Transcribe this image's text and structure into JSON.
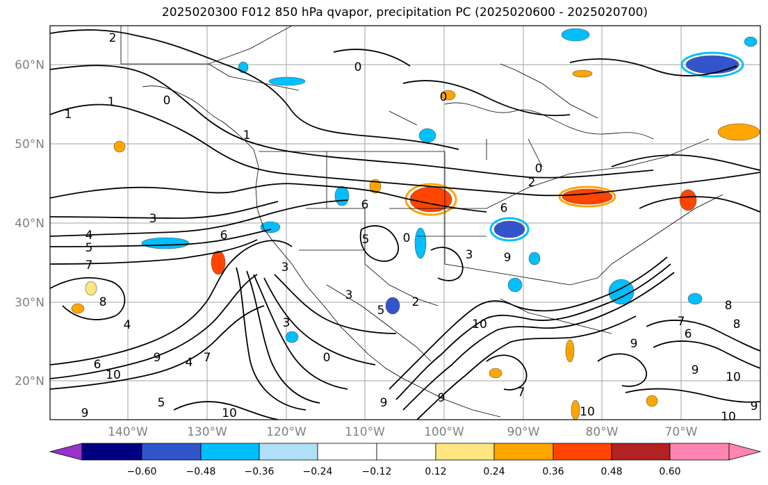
{
  "title": "2025020300 F012 850 hPa qvapor, precipitation PC (2025020600 - 2025020700)",
  "lat_labels": [
    "60°N",
    "50°N",
    "40°N",
    "30°N",
    "20°N"
  ],
  "lon_labels": [
    "140°W",
    "130°W",
    "120°W",
    "110°W",
    "100°W",
    "90°W",
    "80°W",
    "70°W"
  ],
  "contour_labels": [
    "2",
    "0",
    "1",
    "1",
    "0",
    "0",
    "0",
    "1",
    "3",
    "4",
    "5",
    "7",
    "6",
    "6",
    "5",
    "5",
    "2",
    "2",
    "0",
    "3",
    "3",
    "9",
    "8",
    "4",
    "4",
    "7",
    "9",
    "10",
    "10",
    "10",
    "9",
    "0",
    "3",
    "3",
    "5",
    "6",
    "9",
    "9",
    "10",
    "6",
    "7",
    "9",
    "10",
    "10",
    "8",
    "8",
    "7",
    "6",
    "9",
    "9"
  ],
  "colorbar": {
    "colors": [
      "#9932cc",
      "#000080",
      "#3355cc",
      "#00bfff",
      "#b0e0f8",
      "#ffffff",
      "#ffe680",
      "#ffa500",
      "#ff4500",
      "#b22222",
      "#ff85b0"
    ],
    "tick_labels": [
      "−0.60",
      "−0.48",
      "−0.36",
      "−0.24",
      "−0.12",
      "0.12",
      "0.24",
      "0.36",
      "0.48",
      "0.60"
    ]
  },
  "colors": {
    "axis_label": "#808080",
    "grid": "#a0a0a0",
    "contour": "#000000"
  }
}
